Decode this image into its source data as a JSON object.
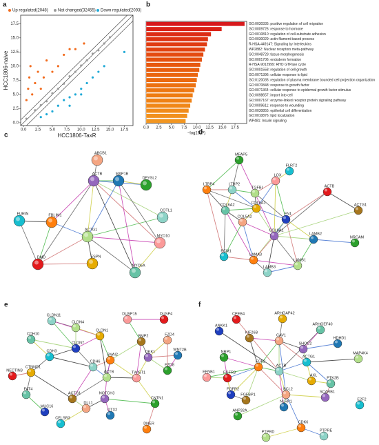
{
  "panels": [
    "a",
    "b",
    "c",
    "d",
    "e",
    "f"
  ],
  "chart_data": [
    {
      "type": "scatter",
      "xlabel": "HCC1806-TaxR",
      "ylabel": "HCC1806-naive",
      "xlim": [
        -0.5,
        19
      ],
      "ylim": [
        -0.5,
        19
      ],
      "xticks": [
        {
          "value": 0,
          "label": "0.0"
        },
        2.5,
        {
          "value": 5,
          "label": "5.0"
        },
        7.5,
        {
          "value": 10,
          "label": "10.0"
        },
        12.5,
        {
          "value": 15,
          "label": "15.0"
        },
        17.5
      ],
      "yticks": [
        {
          "value": 0,
          "label": "0.0"
        },
        2.5,
        {
          "value": 5,
          "label": "5.0"
        },
        7.5,
        {
          "value": 10,
          "label": "10.0"
        },
        12.5,
        {
          "value": 15,
          "label": "15.0"
        },
        17.5
      ],
      "series": [
        {
          "name": "Up regulated(2048)",
          "color": "#f26b1d",
          "x": [
            0.5,
            0.8,
            1.0,
            1.2,
            1.5,
            2,
            2.5,
            3,
            3.5,
            4,
            5,
            6,
            7,
            8,
            9,
            10.5
          ],
          "values": [
            4,
            6,
            8,
            10,
            5,
            7,
            9,
            6,
            8,
            11,
            9,
            10,
            12,
            13,
            13,
            14
          ]
        },
        {
          "name": "Not changed(32455)",
          "color": "#9a9a9a",
          "x": [
            0.5,
            2,
            3,
            4,
            5,
            6,
            7,
            8,
            9,
            10,
            11,
            12,
            13,
            14,
            15
          ],
          "values": [
            0.7,
            2.2,
            3.1,
            3.8,
            5.2,
            6,
            6.9,
            8.2,
            9,
            10.1,
            11,
            12.2,
            12.8,
            14,
            15.1
          ]
        },
        {
          "name": "Down regulated(2093)",
          "color": "#1fa9d6",
          "x": [
            4,
            5,
            6,
            7,
            8,
            9,
            10,
            11,
            12,
            13,
            14,
            17.5,
            3,
            10,
            8
          ],
          "values": [
            1.5,
            2,
            3,
            4,
            4.5,
            5,
            6,
            7,
            8,
            9,
            10,
            12.5,
            1,
            5,
            3
          ]
        }
      ]
    },
    {
      "type": "bar",
      "orientation": "horizontal",
      "xlabel": "−log10(P)",
      "xlim": [
        0,
        19.8
      ],
      "xticks": [
        {
          "value": 0,
          "label": "0.0"
        },
        2.5,
        {
          "value": 5,
          "label": "5.0"
        },
        7.5,
        {
          "value": 10,
          "label": "10.0"
        },
        12.5,
        {
          "value": 15,
          "label": "15.0"
        },
        17.5
      ],
      "categories": [
        "GO:0030335: positive regulation of cell migration",
        "GO:0009725: response to hormone",
        "GO:0010810: regulation of cell-substrate adhesion",
        "GO:0030029: actin filament-based process",
        "R-HSA-449147: Signaling by Interleukins",
        "WP2882: Nuclear receptors meta-pathway",
        "GO:0048729: tissue morphogenesis",
        "GO:0001706: endoderm formation",
        "R-HSA-9012999: RHO GTPase cycle",
        "GO:0001558: regulation of cell growth",
        "GO:0071396: cellular response to lipid",
        "GO:0120035: regulation of plasma membrane bounded cell projection organization",
        "GO:0070848: response to growth factor",
        "GO:0071364: cellular response to epidermal growth factor stimulus",
        "GO:0098657: import into cell",
        "GO:0007167: enzyme-linked receptor protein signaling pathway",
        "GO:0009611: response to wounding",
        "GO:0030855: epithelial cell differentiation",
        "GO:0010876: lipid localization",
        "WP481: Insulin signaling"
      ],
      "values": [
        19.4,
        14.9,
        12.8,
        12.2,
        12.0,
        11.6,
        11.3,
        11.0,
        10.7,
        10.5,
        10.2,
        10.0,
        9.8,
        9.5,
        9.2,
        9.0,
        8.7,
        8.4,
        8.1,
        7.8
      ],
      "colors": [
        "#d7191c",
        "#da2318",
        "#dc2c15",
        "#de3413",
        "#e03c12",
        "#e24311",
        "#e44a10",
        "#e5510f",
        "#e7580f",
        "#e85f0f",
        "#ea650f",
        "#eb6b10",
        "#ec7111",
        "#ed7712",
        "#ee7c14",
        "#ef8216",
        "#f08718",
        "#f18c1b",
        "#f1911e",
        "#f29621"
      ]
    }
  ],
  "networks": [
    {
      "nodes": [
        "ABCB1",
        "ACTB",
        "MAP1B",
        "DPYSL2",
        "FURIN",
        "FBLIM1",
        "COTL1",
        "ACTG1",
        "MYO10",
        "DMD",
        "ESPN",
        "MYO5A"
      ]
    },
    {
      "nodes": [
        "MFAP5",
        "FLRT2",
        "LTBP4",
        "LTBP2",
        "TGFBI",
        "LOX",
        "ACTB",
        "COL5A1",
        "COL6A2",
        "FN1",
        "ACTG1",
        "COL5A2",
        "COL6A1",
        "LAMB2",
        "NRCAM",
        "ECM1",
        "LAMA3",
        "LAMB3",
        "LAMB1"
      ]
    },
    {
      "nodes": [
        "CLDN11",
        "CLDN4",
        "DUSP15",
        "DUSP4",
        "CLDN1",
        "CDH10",
        "CLDN7",
        "BMP2",
        "FZD4",
        "DKK1",
        "WNT2B",
        "FZD8",
        "CDH3",
        "SNAI2",
        "CDH6",
        "ACTB",
        "TWIST1",
        "NECTIN3",
        "CTNND1",
        "FAT4",
        "MUC16",
        "ACTG1",
        "DLL1",
        "NOTCH3",
        "OTX2",
        "CNTN1",
        "CELSR3",
        "DNER"
      ]
    },
    {
      "nodes": [
        "CPEB4",
        "ARHGAP42",
        "ARHGEF40",
        "ANKK1",
        "KIF26B",
        "CAV1",
        "SHOC2",
        "HDHD1",
        "NRP1",
        "ACTG1",
        "FGF2",
        "ACTB",
        "MAP4K4",
        "EFNB1",
        "FGFR3",
        "AXL",
        "PTK2B",
        "FGFR2",
        "FGFBP1",
        "BCL2",
        "SCARB1",
        "NLRP1",
        "ANP32A",
        "E2F2",
        "CDK6",
        "PTPRE",
        "PTPRD"
      ]
    }
  ]
}
